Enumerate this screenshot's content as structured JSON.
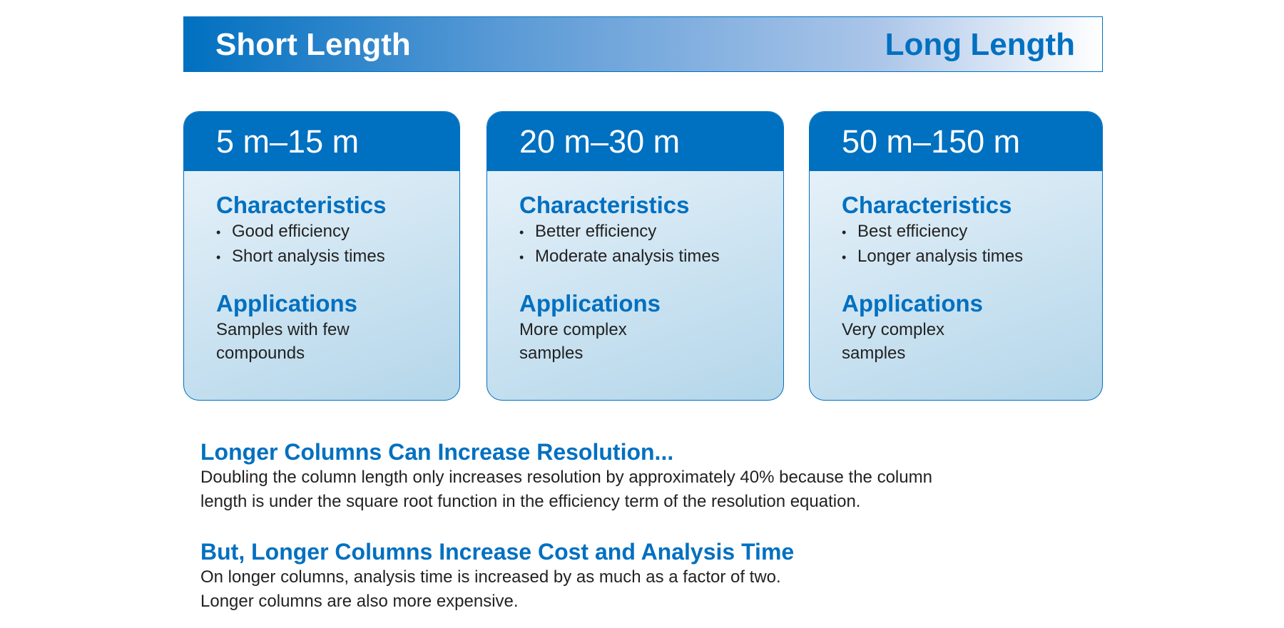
{
  "banner": {
    "left": "Short Length",
    "right": "Long Length"
  },
  "cards": [
    {
      "range": "5 m–15 m",
      "characteristics_heading": "Characteristics",
      "characteristics": [
        "Good efficiency",
        "Short analysis times"
      ],
      "applications_heading": "Applications",
      "applications": "Samples with few compounds"
    },
    {
      "range": "20 m–30 m",
      "characteristics_heading": "Characteristics",
      "characteristics": [
        "Better efficiency",
        "Moderate analysis times"
      ],
      "applications_heading": "Applications",
      "applications": "More complex samples"
    },
    {
      "range": "50 m–150 m",
      "characteristics_heading": "Characteristics",
      "characteristics": [
        "Best efficiency",
        "Longer analysis times"
      ],
      "applications_heading": "Applications",
      "applications": "Very complex samples"
    }
  ],
  "sections": [
    {
      "heading": "Longer Columns Can Increase Resolution...",
      "lines": [
        "Doubling the column length only increases resolution by approximately 40% because the column",
        "length is under the square root function in the efficiency term of the resolution equation."
      ]
    },
    {
      "heading": "But, Longer Columns Increase Cost and Analysis Time",
      "lines": [
        "On longer columns, analysis time is increased by as much as a factor of two.",
        "Longer columns are also more expensive."
      ]
    }
  ]
}
